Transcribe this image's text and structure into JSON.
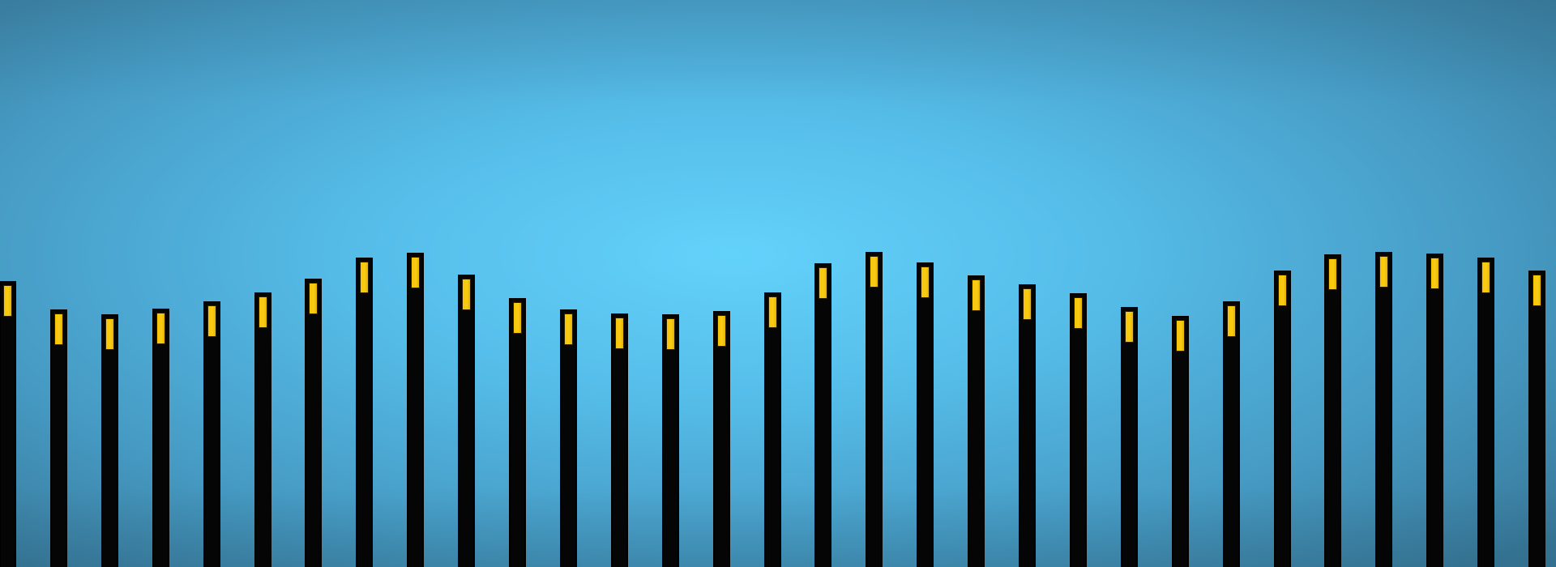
{
  "scene": {
    "colors": {
      "sky_center": "#63d2fb",
      "sky_edge": "#387899",
      "pillar_body": "#050505",
      "pillar_cap": "#f6c40a"
    },
    "pillars": [
      {
        "id": 1,
        "height_fraction": 0.504
      },
      {
        "id": 2,
        "height_fraction": 0.454
      },
      {
        "id": 3,
        "height_fraction": 0.446
      },
      {
        "id": 4,
        "height_fraction": 0.456
      },
      {
        "id": 5,
        "height_fraction": 0.468
      },
      {
        "id": 6,
        "height_fraction": 0.484
      },
      {
        "id": 7,
        "height_fraction": 0.509
      },
      {
        "id": 8,
        "height_fraction": 0.545
      },
      {
        "id": 9,
        "height_fraction": 0.554
      },
      {
        "id": 10,
        "height_fraction": 0.516
      },
      {
        "id": 11,
        "height_fraction": 0.474
      },
      {
        "id": 12,
        "height_fraction": 0.454
      },
      {
        "id": 13,
        "height_fraction": 0.447
      },
      {
        "id": 14,
        "height_fraction": 0.446
      },
      {
        "id": 15,
        "height_fraction": 0.452
      },
      {
        "id": 16,
        "height_fraction": 0.484
      },
      {
        "id": 17,
        "height_fraction": 0.535
      },
      {
        "id": 18,
        "height_fraction": 0.556
      },
      {
        "id": 19,
        "height_fraction": 0.537
      },
      {
        "id": 20,
        "height_fraction": 0.514
      },
      {
        "id": 21,
        "height_fraction": 0.499
      },
      {
        "id": 22,
        "height_fraction": 0.483
      },
      {
        "id": 23,
        "height_fraction": 0.459
      },
      {
        "id": 24,
        "height_fraction": 0.443
      },
      {
        "id": 25,
        "height_fraction": 0.468
      },
      {
        "id": 26,
        "height_fraction": 0.523
      },
      {
        "id": 27,
        "height_fraction": 0.551
      },
      {
        "id": 28,
        "height_fraction": 0.556
      },
      {
        "id": 29,
        "height_fraction": 0.553
      },
      {
        "id": 30,
        "height_fraction": 0.545
      },
      {
        "id": 31,
        "height_fraction": 0.523
      }
    ]
  }
}
